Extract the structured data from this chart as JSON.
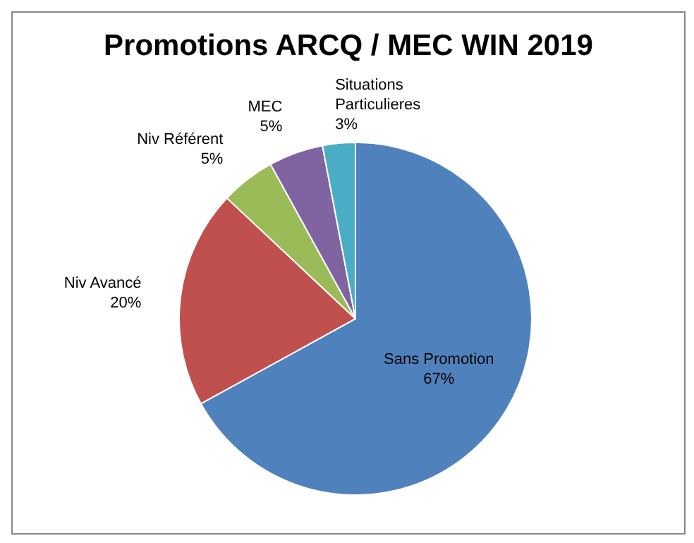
{
  "chart_data": {
    "type": "pie",
    "title": "Promotions ARCQ / MEC WIN 2019",
    "categories": [
      "Sans Promotion",
      "Niv Avancé",
      "Niv Référent",
      "MEC",
      "Situations Particulieres"
    ],
    "values": [
      67,
      20,
      5,
      5,
      3
    ],
    "value_labels": [
      "67%",
      "20%",
      "5%",
      "5%",
      "3%"
    ],
    "colors": [
      "#4f81bd",
      "#c0504d",
      "#9bbb59",
      "#8064a2",
      "#4bacc6"
    ],
    "legend": false
  }
}
